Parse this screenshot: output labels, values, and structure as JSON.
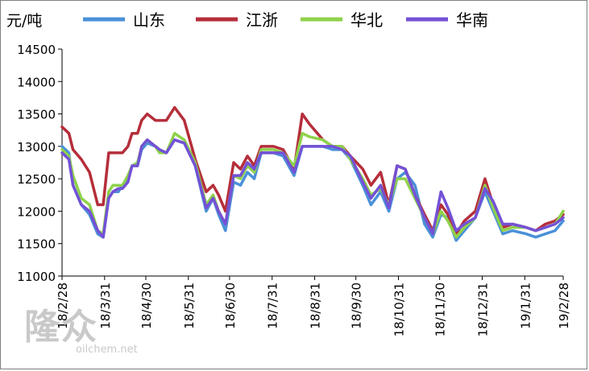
{
  "chart_data": {
    "type": "line",
    "unit_label": "元/吨",
    "ylim": [
      11000,
      14500
    ],
    "yticks": [
      11000,
      11500,
      12000,
      12500,
      13000,
      13500,
      14000,
      14500
    ],
    "xlim": [
      "2018-02-28",
      "2019-02-28"
    ],
    "xticks": [
      "18/2/28",
      "18/3/31",
      "18/4/30",
      "18/5/31",
      "18/6/30",
      "18/7/31",
      "18/8/31",
      "18/9/30",
      "18/10/31",
      "18/11/30",
      "18/12/31",
      "19/1/31",
      "19/2/28"
    ],
    "xtick_dates": [
      "2018-02-28",
      "2018-03-31",
      "2018-04-30",
      "2018-05-31",
      "2018-06-30",
      "2018-07-31",
      "2018-08-31",
      "2018-09-30",
      "2018-10-31",
      "2018-11-30",
      "2018-12-31",
      "2019-01-31",
      "2019-02-28"
    ],
    "grid": false,
    "legend_position": "top",
    "series": [
      {
        "name": "山东",
        "color": "#4a90d9",
        "points": [
          [
            "2018-02-28",
            13000
          ],
          [
            "2018-03-05",
            12900
          ],
          [
            "2018-03-08",
            12400
          ],
          [
            "2018-03-14",
            12100
          ],
          [
            "2018-03-20",
            11950
          ],
          [
            "2018-03-26",
            11650
          ],
          [
            "2018-03-30",
            11600
          ],
          [
            "2018-04-03",
            12200
          ],
          [
            "2018-04-06",
            12300
          ],
          [
            "2018-04-10",
            12300
          ],
          [
            "2018-04-13",
            12400
          ],
          [
            "2018-04-17",
            12500
          ],
          [
            "2018-04-20",
            12700
          ],
          [
            "2018-04-24",
            12700
          ],
          [
            "2018-04-27",
            12950
          ],
          [
            "2018-05-01",
            13050
          ],
          [
            "2018-05-07",
            13000
          ],
          [
            "2018-05-10",
            12950
          ],
          [
            "2018-05-15",
            12900
          ],
          [
            "2018-05-21",
            13100
          ],
          [
            "2018-05-28",
            13050
          ],
          [
            "2018-06-05",
            12700
          ],
          [
            "2018-06-13",
            12000
          ],
          [
            "2018-06-18",
            12200
          ],
          [
            "2018-06-22",
            11950
          ],
          [
            "2018-06-27",
            11700
          ],
          [
            "2018-07-03",
            12450
          ],
          [
            "2018-07-08",
            12400
          ],
          [
            "2018-07-13",
            12600
          ],
          [
            "2018-07-18",
            12500
          ],
          [
            "2018-07-23",
            12900
          ],
          [
            "2018-08-01",
            12900
          ],
          [
            "2018-08-08",
            12850
          ],
          [
            "2018-08-16",
            12550
          ],
          [
            "2018-08-22",
            13000
          ],
          [
            "2018-08-27",
            13000
          ],
          [
            "2018-09-06",
            13000
          ],
          [
            "2018-09-13",
            12950
          ],
          [
            "2018-09-20",
            12950
          ],
          [
            "2018-09-26",
            12800
          ],
          [
            "2018-10-05",
            12400
          ],
          [
            "2018-10-11",
            12100
          ],
          [
            "2018-10-18",
            12300
          ],
          [
            "2018-10-24",
            12000
          ],
          [
            "2018-10-30",
            12500
          ],
          [
            "2018-11-05",
            12600
          ],
          [
            "2018-11-12",
            12400
          ],
          [
            "2018-11-19",
            11800
          ],
          [
            "2018-11-25",
            11600
          ],
          [
            "2018-12-01",
            11950
          ],
          [
            "2018-12-06",
            11900
          ],
          [
            "2018-12-12",
            11550
          ],
          [
            "2018-12-18",
            11700
          ],
          [
            "2018-12-26",
            11900
          ],
          [
            "2019-01-02",
            12300
          ],
          [
            "2019-01-08",
            12000
          ],
          [
            "2019-01-15",
            11650
          ],
          [
            "2019-01-22",
            11700
          ],
          [
            "2019-02-01",
            11650
          ],
          [
            "2019-02-08",
            11600
          ],
          [
            "2019-02-15",
            11650
          ],
          [
            "2019-02-22",
            11700
          ],
          [
            "2019-02-28",
            11850
          ]
        ]
      },
      {
        "name": "江浙",
        "color": "#b52e3a",
        "points": [
          [
            "2018-02-28",
            13300
          ],
          [
            "2018-03-05",
            13200
          ],
          [
            "2018-03-08",
            12950
          ],
          [
            "2018-03-14",
            12800
          ],
          [
            "2018-03-20",
            12600
          ],
          [
            "2018-03-26",
            12100
          ],
          [
            "2018-03-30",
            12100
          ],
          [
            "2018-04-03",
            12900
          ],
          [
            "2018-04-06",
            12900
          ],
          [
            "2018-04-10",
            12900
          ],
          [
            "2018-04-13",
            12900
          ],
          [
            "2018-04-17",
            13000
          ],
          [
            "2018-04-20",
            13200
          ],
          [
            "2018-04-24",
            13200
          ],
          [
            "2018-04-27",
            13400
          ],
          [
            "2018-05-01",
            13500
          ],
          [
            "2018-05-07",
            13400
          ],
          [
            "2018-05-10",
            13400
          ],
          [
            "2018-05-15",
            13400
          ],
          [
            "2018-05-21",
            13600
          ],
          [
            "2018-05-28",
            13400
          ],
          [
            "2018-06-05",
            12800
          ],
          [
            "2018-06-13",
            12300
          ],
          [
            "2018-06-18",
            12400
          ],
          [
            "2018-06-22",
            12250
          ],
          [
            "2018-06-27",
            12000
          ],
          [
            "2018-07-03",
            12750
          ],
          [
            "2018-07-08",
            12650
          ],
          [
            "2018-07-13",
            12850
          ],
          [
            "2018-07-18",
            12700
          ],
          [
            "2018-07-23",
            13000
          ],
          [
            "2018-08-01",
            13000
          ],
          [
            "2018-08-08",
            12950
          ],
          [
            "2018-08-16",
            12650
          ],
          [
            "2018-08-22",
            13500
          ],
          [
            "2018-08-27",
            13350
          ],
          [
            "2018-09-06",
            13100
          ],
          [
            "2018-09-13",
            13000
          ],
          [
            "2018-09-20",
            13000
          ],
          [
            "2018-09-26",
            12850
          ],
          [
            "2018-10-05",
            12650
          ],
          [
            "2018-10-11",
            12400
          ],
          [
            "2018-10-18",
            12600
          ],
          [
            "2018-10-24",
            12100
          ],
          [
            "2018-10-30",
            12700
          ],
          [
            "2018-11-05",
            12650
          ],
          [
            "2018-11-12",
            12250
          ],
          [
            "2018-11-19",
            11950
          ],
          [
            "2018-11-25",
            11700
          ],
          [
            "2018-12-01",
            12100
          ],
          [
            "2018-12-06",
            11950
          ],
          [
            "2018-12-12",
            11650
          ],
          [
            "2018-12-18",
            11850
          ],
          [
            "2018-12-26",
            12000
          ],
          [
            "2019-01-02",
            12500
          ],
          [
            "2019-01-08",
            12100
          ],
          [
            "2019-01-15",
            11750
          ],
          [
            "2019-01-22",
            11800
          ],
          [
            "2019-02-01",
            11750
          ],
          [
            "2019-02-08",
            11700
          ],
          [
            "2019-02-15",
            11800
          ],
          [
            "2019-02-22",
            11850
          ],
          [
            "2019-02-28",
            11950
          ]
        ]
      },
      {
        "name": "华北",
        "color": "#8fd24b",
        "points": [
          [
            "2018-02-28",
            12950
          ],
          [
            "2018-03-05",
            12850
          ],
          [
            "2018-03-08",
            12550
          ],
          [
            "2018-03-14",
            12200
          ],
          [
            "2018-03-20",
            12100
          ],
          [
            "2018-03-26",
            11700
          ],
          [
            "2018-03-30",
            11650
          ],
          [
            "2018-04-03",
            12300
          ],
          [
            "2018-04-06",
            12400
          ],
          [
            "2018-04-10",
            12400
          ],
          [
            "2018-04-13",
            12400
          ],
          [
            "2018-04-17",
            12550
          ],
          [
            "2018-04-20",
            12700
          ],
          [
            "2018-04-24",
            12750
          ],
          [
            "2018-04-27",
            13000
          ],
          [
            "2018-05-01",
            13100
          ],
          [
            "2018-05-07",
            13000
          ],
          [
            "2018-05-10",
            12900
          ],
          [
            "2018-05-15",
            12900
          ],
          [
            "2018-05-21",
            13200
          ],
          [
            "2018-05-28",
            13100
          ],
          [
            "2018-06-05",
            12750
          ],
          [
            "2018-06-13",
            12100
          ],
          [
            "2018-06-18",
            12250
          ],
          [
            "2018-06-22",
            12000
          ],
          [
            "2018-06-27",
            11800
          ],
          [
            "2018-07-03",
            12550
          ],
          [
            "2018-07-08",
            12500
          ],
          [
            "2018-07-13",
            12700
          ],
          [
            "2018-07-18",
            12600
          ],
          [
            "2018-07-23",
            12950
          ],
          [
            "2018-08-01",
            12950
          ],
          [
            "2018-08-08",
            12900
          ],
          [
            "2018-08-16",
            12700
          ],
          [
            "2018-08-22",
            13200
          ],
          [
            "2018-08-27",
            13150
          ],
          [
            "2018-09-06",
            13100
          ],
          [
            "2018-09-13",
            13000
          ],
          [
            "2018-09-20",
            13000
          ],
          [
            "2018-09-26",
            12800
          ],
          [
            "2018-10-05",
            12500
          ],
          [
            "2018-10-11",
            12250
          ],
          [
            "2018-10-18",
            12350
          ],
          [
            "2018-10-24",
            12100
          ],
          [
            "2018-10-30",
            12500
          ],
          [
            "2018-11-05",
            12500
          ],
          [
            "2018-11-12",
            12200
          ],
          [
            "2018-11-19",
            11900
          ],
          [
            "2018-11-25",
            11650
          ],
          [
            "2018-12-01",
            12000
          ],
          [
            "2018-12-06",
            11850
          ],
          [
            "2018-12-12",
            11600
          ],
          [
            "2018-12-18",
            11750
          ],
          [
            "2018-12-26",
            11900
          ],
          [
            "2019-01-02",
            12400
          ],
          [
            "2019-01-08",
            12050
          ],
          [
            "2019-01-15",
            11700
          ],
          [
            "2019-01-22",
            11750
          ],
          [
            "2019-02-01",
            11750
          ],
          [
            "2019-02-08",
            11700
          ],
          [
            "2019-02-15",
            11750
          ],
          [
            "2019-02-22",
            11800
          ],
          [
            "2019-02-28",
            12000
          ]
        ]
      },
      {
        "name": "华南",
        "color": "#7451d6",
        "points": [
          [
            "2018-02-28",
            12900
          ],
          [
            "2018-03-05",
            12800
          ],
          [
            "2018-03-08",
            12400
          ],
          [
            "2018-03-14",
            12100
          ],
          [
            "2018-03-20",
            12000
          ],
          [
            "2018-03-26",
            11700
          ],
          [
            "2018-03-30",
            11600
          ],
          [
            "2018-04-03",
            12200
          ],
          [
            "2018-04-06",
            12300
          ],
          [
            "2018-04-10",
            12350
          ],
          [
            "2018-04-13",
            12350
          ],
          [
            "2018-04-17",
            12450
          ],
          [
            "2018-04-20",
            12700
          ],
          [
            "2018-04-24",
            12700
          ],
          [
            "2018-04-27",
            13000
          ],
          [
            "2018-05-01",
            13100
          ],
          [
            "2018-05-07",
            13000
          ],
          [
            "2018-05-10",
            12950
          ],
          [
            "2018-05-15",
            12900
          ],
          [
            "2018-05-21",
            13100
          ],
          [
            "2018-05-28",
            13050
          ],
          [
            "2018-06-05",
            12700
          ],
          [
            "2018-06-13",
            12050
          ],
          [
            "2018-06-18",
            12200
          ],
          [
            "2018-06-22",
            12000
          ],
          [
            "2018-06-27",
            11800
          ],
          [
            "2018-07-03",
            12550
          ],
          [
            "2018-07-08",
            12550
          ],
          [
            "2018-07-13",
            12750
          ],
          [
            "2018-07-18",
            12650
          ],
          [
            "2018-07-23",
            12900
          ],
          [
            "2018-08-01",
            12900
          ],
          [
            "2018-08-08",
            12900
          ],
          [
            "2018-08-16",
            12600
          ],
          [
            "2018-08-22",
            13000
          ],
          [
            "2018-08-27",
            13000
          ],
          [
            "2018-09-06",
            13000
          ],
          [
            "2018-09-13",
            13000
          ],
          [
            "2018-09-20",
            12950
          ],
          [
            "2018-09-26",
            12850
          ],
          [
            "2018-10-05",
            12450
          ],
          [
            "2018-10-11",
            12200
          ],
          [
            "2018-10-18",
            12400
          ],
          [
            "2018-10-24",
            12050
          ],
          [
            "2018-10-30",
            12700
          ],
          [
            "2018-11-05",
            12650
          ],
          [
            "2018-11-12",
            12250
          ],
          [
            "2018-11-19",
            11900
          ],
          [
            "2018-11-25",
            11650
          ],
          [
            "2018-12-01",
            12300
          ],
          [
            "2018-12-06",
            12050
          ],
          [
            "2018-12-12",
            11700
          ],
          [
            "2018-12-18",
            11800
          ],
          [
            "2018-12-26",
            11900
          ],
          [
            "2019-01-02",
            12350
          ],
          [
            "2019-01-08",
            12150
          ],
          [
            "2019-01-15",
            11800
          ],
          [
            "2019-01-22",
            11800
          ],
          [
            "2019-02-01",
            11750
          ],
          [
            "2019-02-08",
            11700
          ],
          [
            "2019-02-15",
            11750
          ],
          [
            "2019-02-22",
            11800
          ],
          [
            "2019-02-28",
            11900
          ]
        ]
      }
    ]
  },
  "watermark": {
    "main": "隆众",
    "sub": "oilchem.net"
  }
}
